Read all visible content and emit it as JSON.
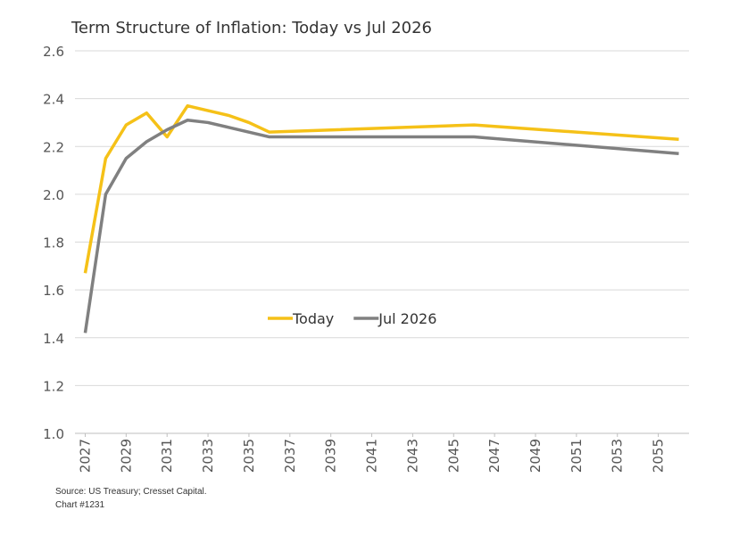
{
  "chart_data": {
    "type": "line",
    "title": "Term Structure of Inflation: Today vs Jul 2026",
    "x": [
      2027,
      2028,
      2029,
      2030,
      2031,
      2032,
      2033,
      2034,
      2035,
      2036,
      2046,
      2056
    ],
    "series": [
      {
        "name": "Today",
        "color": "#f5c118",
        "values": [
          1.67,
          2.15,
          2.29,
          2.34,
          2.24,
          2.37,
          2.35,
          2.33,
          2.3,
          2.26,
          2.29,
          2.23
        ]
      },
      {
        "name": "Jul 2026",
        "color": "#808080",
        "values": [
          1.42,
          2.0,
          2.15,
          2.22,
          2.27,
          2.31,
          2.3,
          2.28,
          2.26,
          2.24,
          2.24,
          2.17
        ]
      }
    ],
    "xlim": [
      2026.5,
      2056.5
    ],
    "xticks": [
      2027,
      2029,
      2031,
      2033,
      2035,
      2037,
      2039,
      2041,
      2043,
      2045,
      2047,
      2049,
      2051,
      2053,
      2055
    ],
    "ylim": [
      1.0,
      2.6
    ],
    "yticks": [
      {
        "value": 1.0,
        "label": "1.0"
      },
      1.2,
      1.4,
      1.6,
      1.8,
      {
        "value": 2.0,
        "label": "2.0"
      },
      2.2,
      2.4,
      2.6
    ],
    "grid": true,
    "legend": "center",
    "source": "Source: US Treasury; Cresset Capital.",
    "note": "Chart #1231"
  }
}
